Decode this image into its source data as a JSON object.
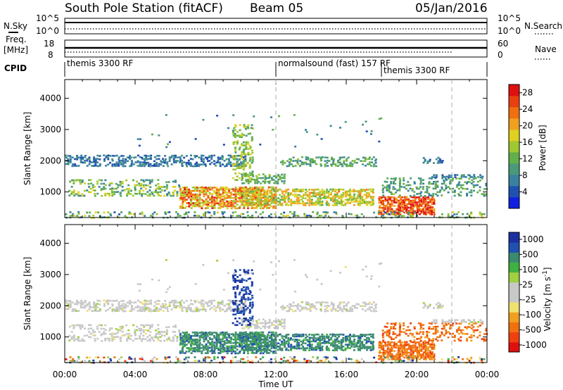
{
  "header": {
    "station": "South Pole Station (fitACF)",
    "beam": "Beam 05",
    "date": "05/Jan/2016"
  },
  "strip_labels": {
    "nsky": "N.Sky",
    "nsearch": "N.Search",
    "freq_line1": "Freq.",
    "freq_line2": "[MHz]",
    "nave": "Nave",
    "cpid": "CPID"
  },
  "strip_ticks": {
    "noise_left": [
      "10^5",
      "10^0"
    ],
    "noise_right": [
      "10^5",
      "10^0"
    ],
    "freq_left": [
      "18",
      "8"
    ],
    "freq_right": [
      "60",
      "0"
    ]
  },
  "cpid_segments": [
    {
      "label": "themis 3300 RF",
      "start_hour": 0
    },
    {
      "label": "normalsound (fast) 157 RF",
      "start_hour": 12
    },
    {
      "label": "themis 3300 RF",
      "start_hour": 18
    }
  ],
  "colors": {
    "power": [
      "#1020e0",
      "#2050b0",
      "#3a80a0",
      "#4a9a7a",
      "#62b04a",
      "#a0c830",
      "#e0d020",
      "#f0a020",
      "#f07010",
      "#e84010",
      "#e01010"
    ],
    "velocity": [
      "#e01010",
      "#f04010",
      "#f07010",
      "#f0a020",
      "#f0e070",
      "#c8c8c8",
      "#c8c8c8",
      "#a0d040",
      "#40b040",
      "#3a8a70",
      "#2050b0",
      "#1a30a0"
    ]
  },
  "chart_data": [
    {
      "type": "heatmap",
      "name": "power-panel",
      "title": "",
      "xlabel": "",
      "ylabel": "Slant Range [km]",
      "xlim": [
        0,
        24
      ],
      "ylim": [
        180,
        4600
      ],
      "x_ticks": [
        "00:00",
        "04:00",
        "08:00",
        "12:00",
        "16:00",
        "20:00",
        "00:00"
      ],
      "y_ticks": [
        "1000",
        "2000",
        "3000",
        "4000"
      ],
      "colorbar": {
        "label": "Power [dB]",
        "ticks": [
          "4",
          "8",
          "12",
          "16",
          "20",
          "24",
          "28"
        ],
        "range": [
          0,
          30
        ]
      }
    },
    {
      "type": "heatmap",
      "name": "velocity-panel",
      "title": "",
      "xlabel": "Time UT",
      "ylabel": "Slant Range [km]",
      "xlim": [
        0,
        24
      ],
      "ylim": [
        180,
        4600
      ],
      "x_ticks": [
        "00:00",
        "04:00",
        "08:00",
        "12:00",
        "16:00",
        "20:00",
        "00:00"
      ],
      "y_ticks": [
        "1000",
        "2000",
        "3000",
        "4000"
      ],
      "colorbar": {
        "label": "Velocity [m s^-1]",
        "ticks": [
          "1000",
          "500",
          "100",
          "25",
          "-25",
          "-100",
          "-500",
          "-1000"
        ],
        "range": [
          -1000,
          1000
        ]
      }
    }
  ]
}
